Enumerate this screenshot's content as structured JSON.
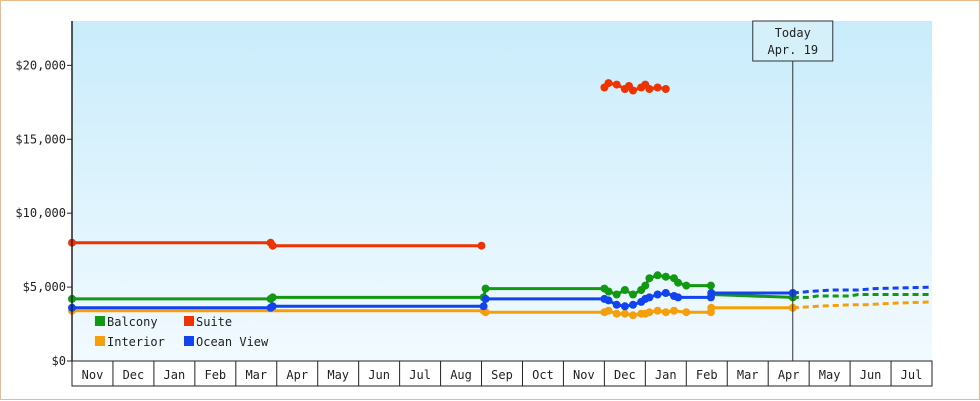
{
  "chart_data": {
    "type": "line",
    "title": "",
    "xlabel": "",
    "ylabel": "",
    "ylim": [
      0,
      23000
    ],
    "y_ticks": [
      {
        "value": 0,
        "label": "$0"
      },
      {
        "value": 5000,
        "label": "$5,000"
      },
      {
        "value": 10000,
        "label": "$10,000"
      },
      {
        "value": 15000,
        "label": "$15,000"
      },
      {
        "value": 20000,
        "label": "$20,000"
      }
    ],
    "x_unit": "months since start of Nov",
    "xlim": [
      0,
      21
    ],
    "months": [
      "Nov",
      "Dec",
      "Jan",
      "Feb",
      "Mar",
      "Apr",
      "May",
      "Jun",
      "Jul",
      "Aug",
      "Sep",
      "Oct",
      "Nov",
      "Dec",
      "Jan",
      "Feb",
      "Mar",
      "Apr",
      "May",
      "Jun",
      "Jul"
    ],
    "grid": false,
    "today_marker": {
      "x": 17.6,
      "line1": "Today",
      "line2": "Apr. 19"
    },
    "legend_position": "bottom-left",
    "series": [
      {
        "name": "Balcony",
        "color": "#119911",
        "points": [
          [
            0,
            4200
          ],
          [
            4.85,
            4200
          ],
          [
            4.9,
            4300
          ],
          [
            10.05,
            4300
          ],
          [
            10.1,
            4900
          ],
          [
            13.0,
            4900
          ],
          [
            13.1,
            4700
          ],
          [
            13.3,
            4500
          ],
          [
            13.5,
            4800
          ],
          [
            13.7,
            4500
          ],
          [
            13.9,
            4800
          ],
          [
            14.0,
            5100
          ],
          [
            14.1,
            5600
          ],
          [
            14.3,
            5800
          ],
          [
            14.5,
            5700
          ],
          [
            14.7,
            5600
          ],
          [
            14.8,
            5300
          ],
          [
            15.0,
            5100
          ],
          [
            15.3,
            5100
          ],
          [
            15.6,
            5100
          ],
          [
            15.61,
            4500
          ],
          [
            17.6,
            4300
          ]
        ],
        "forecast": [
          [
            17.6,
            4300
          ],
          [
            18.0,
            4300
          ],
          [
            18.2,
            4400
          ],
          [
            19.0,
            4400
          ],
          [
            19.2,
            4500
          ],
          [
            21,
            4500
          ]
        ]
      },
      {
        "name": "Suite",
        "color": "#ee3300",
        "points": [
          [
            0,
            8000
          ],
          [
            4.85,
            8000
          ],
          [
            4.9,
            7800
          ],
          [
            10.0,
            7800
          ]
        ],
        "points_2": [
          [
            13.0,
            18500
          ],
          [
            13.1,
            18800
          ],
          [
            13.3,
            18700
          ],
          [
            13.5,
            18400
          ],
          [
            13.6,
            18600
          ],
          [
            13.7,
            18300
          ],
          [
            13.9,
            18500
          ],
          [
            14.0,
            18700
          ],
          [
            14.1,
            18400
          ],
          [
            14.3,
            18500
          ],
          [
            14.5,
            18400
          ]
        ]
      },
      {
        "name": "Interior",
        "color": "#f5a00a",
        "points": [
          [
            0,
            3400
          ],
          [
            4.85,
            3400
          ],
          [
            4.9,
            3400
          ],
          [
            10.05,
            3400
          ],
          [
            10.1,
            3300
          ],
          [
            13.0,
            3300
          ],
          [
            13.1,
            3400
          ],
          [
            13.3,
            3200
          ],
          [
            13.5,
            3200
          ],
          [
            13.7,
            3100
          ],
          [
            13.9,
            3200
          ],
          [
            14.0,
            3200
          ],
          [
            14.1,
            3300
          ],
          [
            14.3,
            3400
          ],
          [
            14.5,
            3300
          ],
          [
            14.7,
            3400
          ],
          [
            15.0,
            3300
          ],
          [
            15.3,
            3300
          ],
          [
            15.6,
            3300
          ],
          [
            15.61,
            3600
          ],
          [
            17.6,
            3600
          ]
        ],
        "forecast": [
          [
            17.6,
            3600
          ],
          [
            18.2,
            3700
          ],
          [
            19.0,
            3800
          ],
          [
            19.4,
            3800
          ],
          [
            20.0,
            3900
          ],
          [
            21,
            4000
          ]
        ]
      },
      {
        "name": "Ocean View",
        "color": "#1144ee",
        "points": [
          [
            0,
            3600
          ],
          [
            4.85,
            3600
          ],
          [
            4.9,
            3700
          ],
          [
            10.05,
            3700
          ],
          [
            10.1,
            4200
          ],
          [
            13.0,
            4200
          ],
          [
            13.1,
            4100
          ],
          [
            13.3,
            3800
          ],
          [
            13.5,
            3700
          ],
          [
            13.7,
            3800
          ],
          [
            13.9,
            4000
          ],
          [
            14.0,
            4200
          ],
          [
            14.1,
            4300
          ],
          [
            14.3,
            4500
          ],
          [
            14.5,
            4600
          ],
          [
            14.7,
            4400
          ],
          [
            14.8,
            4300
          ],
          [
            15.0,
            4300
          ],
          [
            15.3,
            4300
          ],
          [
            15.6,
            4300
          ],
          [
            15.61,
            4600
          ],
          [
            17.6,
            4600
          ]
        ],
        "forecast": [
          [
            17.6,
            4600
          ],
          [
            18.0,
            4700
          ],
          [
            18.6,
            4800
          ],
          [
            19.2,
            4800
          ],
          [
            19.6,
            4900
          ],
          [
            21,
            5000
          ]
        ]
      }
    ]
  }
}
